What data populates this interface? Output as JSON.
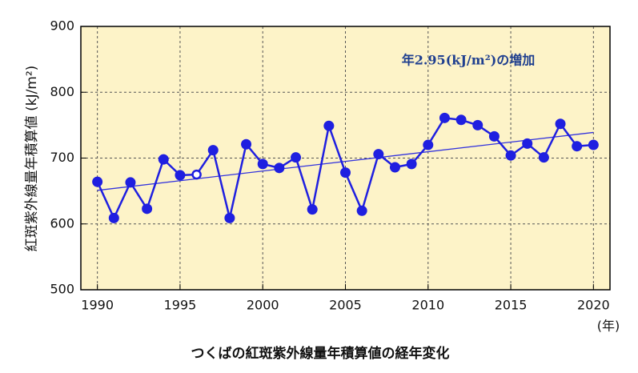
{
  "chart_data": {
    "type": "line",
    "ylabel": "紅斑紫外線量年積算値 (kJ/m²)",
    "xlabel": "(年)",
    "caption": "つくばの紅斑紫外線量年積算値の経年変化",
    "annotation": "年2.95(kJ/m²)の増加",
    "x": [
      1990,
      1991,
      1992,
      1993,
      1994,
      1995,
      1996,
      1997,
      1998,
      1999,
      2000,
      2001,
      2002,
      2003,
      2004,
      2005,
      2006,
      2007,
      2008,
      2009,
      2010,
      2011,
      2012,
      2013,
      2014,
      2015,
      2016,
      2017,
      2018,
      2019,
      2020
    ],
    "series": [
      {
        "color": "#1f1fe0",
        "values": [
          664,
          609,
          663,
          623,
          698,
          674,
          675,
          712,
          609,
          721,
          691,
          685,
          701,
          622,
          749,
          678,
          620,
          706,
          686,
          691,
          720,
          761,
          758,
          750,
          733,
          704,
          722,
          701,
          752,
          718,
          720
        ]
      }
    ],
    "hollow_x": [
      1996
    ],
    "trend_line": {
      "x": [
        1990,
        2020
      ],
      "values": [
        651,
        739
      ],
      "color": "#3333dd"
    },
    "xlim": [
      1989,
      2021
    ],
    "xticks": [
      1990,
      1995,
      2000,
      2005,
      2010,
      2015,
      2020
    ],
    "ylim": [
      500,
      900
    ],
    "yticks": [
      500,
      600,
      700,
      800,
      900
    ],
    "grid": true,
    "background": "#fdf3c8"
  }
}
